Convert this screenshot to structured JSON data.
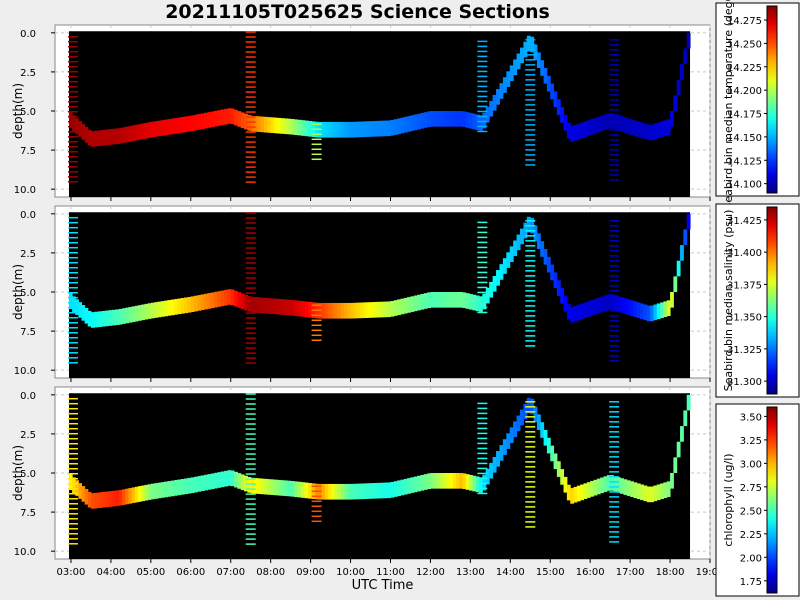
{
  "title": "20211105T025625 Science Sections",
  "xlabel": "UTC Time",
  "colormap": "jet",
  "background": "#000000",
  "chart_data": {
    "type": "heatmap",
    "title": "20211105T025625 Science Sections",
    "xlabel": "UTC Time",
    "x_ticks": [
      "03:00",
      "04:00",
      "05:00",
      "06:00",
      "07:00",
      "08:00",
      "09:00",
      "10:00",
      "11:00",
      "12:00",
      "13:00",
      "14:00",
      "15:00",
      "16:00",
      "17:00",
      "18:00",
      "19:00"
    ],
    "xlim_hours": [
      2.6,
      19.0
    ],
    "data_range_hours": [
      2.95,
      18.5
    ],
    "panels": [
      {
        "ylabel": "depth(m)",
        "y_ticks": [
          "0.0",
          "2.5",
          "5.0",
          "7.5",
          "10.0"
        ],
        "ylim": [
          10.5,
          -0.5
        ],
        "colorbar_label": "Seabird.bin median temperature (degC)",
        "colorbar_ticks": [
          "14.100",
          "14.125",
          "14.150",
          "14.175",
          "14.200",
          "14.225",
          "14.250",
          "14.275"
        ],
        "clim": [
          14.09,
          14.29
        ],
        "track": [
          {
            "t": 2.95,
            "depth": 5.5,
            "value": 14.285
          },
          {
            "t": 3.5,
            "depth": 6.8,
            "value": 14.28
          },
          {
            "t": 4.2,
            "depth": 6.6,
            "value": 14.28
          },
          {
            "t": 5.0,
            "depth": 6.2,
            "value": 14.27
          },
          {
            "t": 6.0,
            "depth": 5.8,
            "value": 14.265
          },
          {
            "t": 7.0,
            "depth": 5.3,
            "value": 14.26
          },
          {
            "t": 7.5,
            "depth": 5.8,
            "value": 14.245
          },
          {
            "t": 8.5,
            "depth": 6.0,
            "value": 14.2
          },
          {
            "t": 9.2,
            "depth": 6.2,
            "value": 14.16
          },
          {
            "t": 10.0,
            "depth": 6.2,
            "value": 14.145
          },
          {
            "t": 11.0,
            "depth": 6.1,
            "value": 14.14
          },
          {
            "t": 12.0,
            "depth": 5.5,
            "value": 14.13
          },
          {
            "t": 12.8,
            "depth": 5.5,
            "value": 14.125
          },
          {
            "t": 13.3,
            "depth": 5.8,
            "value": 14.135
          },
          {
            "t": 14.5,
            "depth": 0.5,
            "value": 14.15
          },
          {
            "t": 15.5,
            "depth": 6.5,
            "value": 14.11
          },
          {
            "t": 16.5,
            "depth": 5.6,
            "value": 14.1
          },
          {
            "t": 17.5,
            "depth": 6.4,
            "value": 14.105
          },
          {
            "t": 18.0,
            "depth": 6.0,
            "value": 14.11
          },
          {
            "t": 18.5,
            "depth": 0.0,
            "value": 14.1
          }
        ],
        "profiles": [
          {
            "t": 3.05,
            "top": 0.2,
            "bottom": 9.8,
            "value": 14.285
          },
          {
            "t": 7.5,
            "top": -0.1,
            "bottom": 9.8,
            "value": 14.255
          },
          {
            "t": 9.15,
            "top": 5.8,
            "bottom": 8.2,
            "value": 14.2
          },
          {
            "t": 13.3,
            "top": 0.5,
            "bottom": 6.5,
            "value": 14.15
          },
          {
            "t": 14.5,
            "top": 0.4,
            "bottom": 8.5,
            "value": 14.15
          },
          {
            "t": 16.6,
            "top": 0.4,
            "bottom": 9.5,
            "value": 14.1
          }
        ]
      },
      {
        "ylabel": "depth(m)",
        "y_ticks": [
          "0.0",
          "2.5",
          "5.0",
          "7.5",
          "10.0"
        ],
        "ylim": [
          10.5,
          -0.5
        ],
        "colorbar_label": "Seabird.bin median salinity (psu)",
        "colorbar_ticks": [
          "31.300",
          "31.325",
          "31.350",
          "31.375",
          "31.400",
          "31.425"
        ],
        "clim": [
          31.29,
          31.435
        ],
        "track": [
          {
            "t": 2.95,
            "depth": 5.5,
            "value": 31.34
          },
          {
            "t": 3.5,
            "depth": 6.8,
            "value": 31.345
          },
          {
            "t": 4.2,
            "depth": 6.6,
            "value": 31.355
          },
          {
            "t": 5.0,
            "depth": 6.2,
            "value": 31.37
          },
          {
            "t": 6.0,
            "depth": 5.8,
            "value": 31.39
          },
          {
            "t": 7.0,
            "depth": 5.3,
            "value": 31.41
          },
          {
            "t": 7.5,
            "depth": 5.8,
            "value": 31.43
          },
          {
            "t": 8.5,
            "depth": 6.0,
            "value": 31.425
          },
          {
            "t": 9.2,
            "depth": 6.2,
            "value": 31.41
          },
          {
            "t": 10.0,
            "depth": 6.2,
            "value": 31.39
          },
          {
            "t": 11.0,
            "depth": 6.1,
            "value": 31.37
          },
          {
            "t": 12.0,
            "depth": 5.5,
            "value": 31.355
          },
          {
            "t": 12.8,
            "depth": 5.5,
            "value": 31.36
          },
          {
            "t": 13.3,
            "depth": 5.8,
            "value": 31.35
          },
          {
            "t": 14.5,
            "depth": 0.5,
            "value": 31.33
          },
          {
            "t": 15.5,
            "depth": 6.5,
            "value": 31.305
          },
          {
            "t": 16.5,
            "depth": 5.6,
            "value": 31.3
          },
          {
            "t": 17.5,
            "depth": 6.4,
            "value": 31.32
          },
          {
            "t": 18.0,
            "depth": 6.0,
            "value": 31.38
          },
          {
            "t": 18.5,
            "depth": 0.0,
            "value": 31.3
          }
        ],
        "profiles": [
          {
            "t": 3.05,
            "top": 0.2,
            "bottom": 9.8,
            "value": 31.34
          },
          {
            "t": 7.5,
            "top": -0.1,
            "bottom": 9.8,
            "value": 31.43
          },
          {
            "t": 9.15,
            "top": 5.8,
            "bottom": 8.2,
            "value": 31.4
          },
          {
            "t": 13.3,
            "top": 0.5,
            "bottom": 6.5,
            "value": 31.35
          },
          {
            "t": 14.5,
            "top": 0.4,
            "bottom": 8.5,
            "value": 31.345
          },
          {
            "t": 16.6,
            "top": 0.4,
            "bottom": 9.5,
            "value": 31.3
          }
        ]
      },
      {
        "ylabel": "depth(m)",
        "y_ticks": [
          "0.0",
          "2.5",
          "5.0",
          "7.5",
          "10.0"
        ],
        "ylim": [
          10.5,
          -0.5
        ],
        "colorbar_label": "chlorophyll (ug/l)",
        "colorbar_ticks": [
          "1.75",
          "2.00",
          "2.25",
          "2.50",
          "2.75",
          "3.00",
          "3.25",
          "3.50"
        ],
        "clim": [
          1.62,
          3.6
        ],
        "track": [
          {
            "t": 2.95,
            "depth": 5.5,
            "value": 2.85
          },
          {
            "t": 3.5,
            "depth": 6.8,
            "value": 3.2
          },
          {
            "t": 4.2,
            "depth": 6.6,
            "value": 3.3
          },
          {
            "t": 5.0,
            "depth": 6.2,
            "value": 2.6
          },
          {
            "t": 6.0,
            "depth": 5.8,
            "value": 2.5
          },
          {
            "t": 7.0,
            "depth": 5.3,
            "value": 2.45
          },
          {
            "t": 7.5,
            "depth": 5.8,
            "value": 2.9
          },
          {
            "t": 8.5,
            "depth": 6.0,
            "value": 2.5
          },
          {
            "t": 9.2,
            "depth": 6.2,
            "value": 3.1
          },
          {
            "t": 10.0,
            "depth": 6.2,
            "value": 2.5
          },
          {
            "t": 11.0,
            "depth": 6.1,
            "value": 2.4
          },
          {
            "t": 12.0,
            "depth": 5.5,
            "value": 2.6
          },
          {
            "t": 12.8,
            "depth": 5.5,
            "value": 3.0
          },
          {
            "t": 13.3,
            "depth": 5.8,
            "value": 2.3
          },
          {
            "t": 14.5,
            "depth": 0.5,
            "value": 2.0
          },
          {
            "t": 15.5,
            "depth": 6.5,
            "value": 2.95
          },
          {
            "t": 16.5,
            "depth": 5.6,
            "value": 2.5
          },
          {
            "t": 17.5,
            "depth": 6.4,
            "value": 2.8
          },
          {
            "t": 18.0,
            "depth": 6.0,
            "value": 2.6
          },
          {
            "t": 18.5,
            "depth": 0.0,
            "value": 2.5
          }
        ],
        "profiles": [
          {
            "t": 3.05,
            "top": 0.2,
            "bottom": 9.8,
            "value": 2.9
          },
          {
            "t": 7.5,
            "top": -0.1,
            "bottom": 9.8,
            "value": 2.5
          },
          {
            "t": 9.15,
            "top": 5.8,
            "bottom": 8.2,
            "value": 3.2
          },
          {
            "t": 13.3,
            "top": 0.5,
            "bottom": 6.5,
            "value": 2.4
          },
          {
            "t": 14.5,
            "top": 0.4,
            "bottom": 8.5,
            "value": 2.8
          },
          {
            "t": 16.6,
            "top": 0.4,
            "bottom": 9.5,
            "value": 2.3
          }
        ]
      }
    ]
  }
}
